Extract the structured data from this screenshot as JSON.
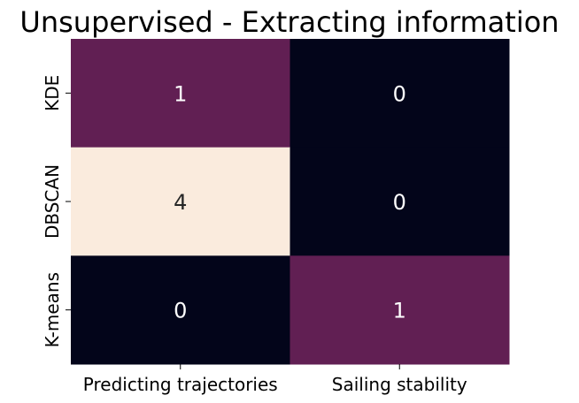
{
  "chart_data": {
    "type": "heatmap",
    "title": "Unsupervised - Extracting information",
    "xlabel": "",
    "ylabel": "",
    "x_categories": [
      "Predicting trajectories",
      "Sailing stability"
    ],
    "y_categories": [
      "KDE",
      "DBSCAN",
      "K-means"
    ],
    "values": [
      [
        1,
        0
      ],
      [
        4,
        0
      ],
      [
        0,
        1
      ]
    ],
    "colorbar": false,
    "grid": false,
    "colors": {
      "0": "#03051a",
      "1": "#611f53",
      "4": "#faebdd"
    },
    "label_colors": {
      "light_on_dark": "#ffffff",
      "dark_on_light": "#262626"
    }
  }
}
